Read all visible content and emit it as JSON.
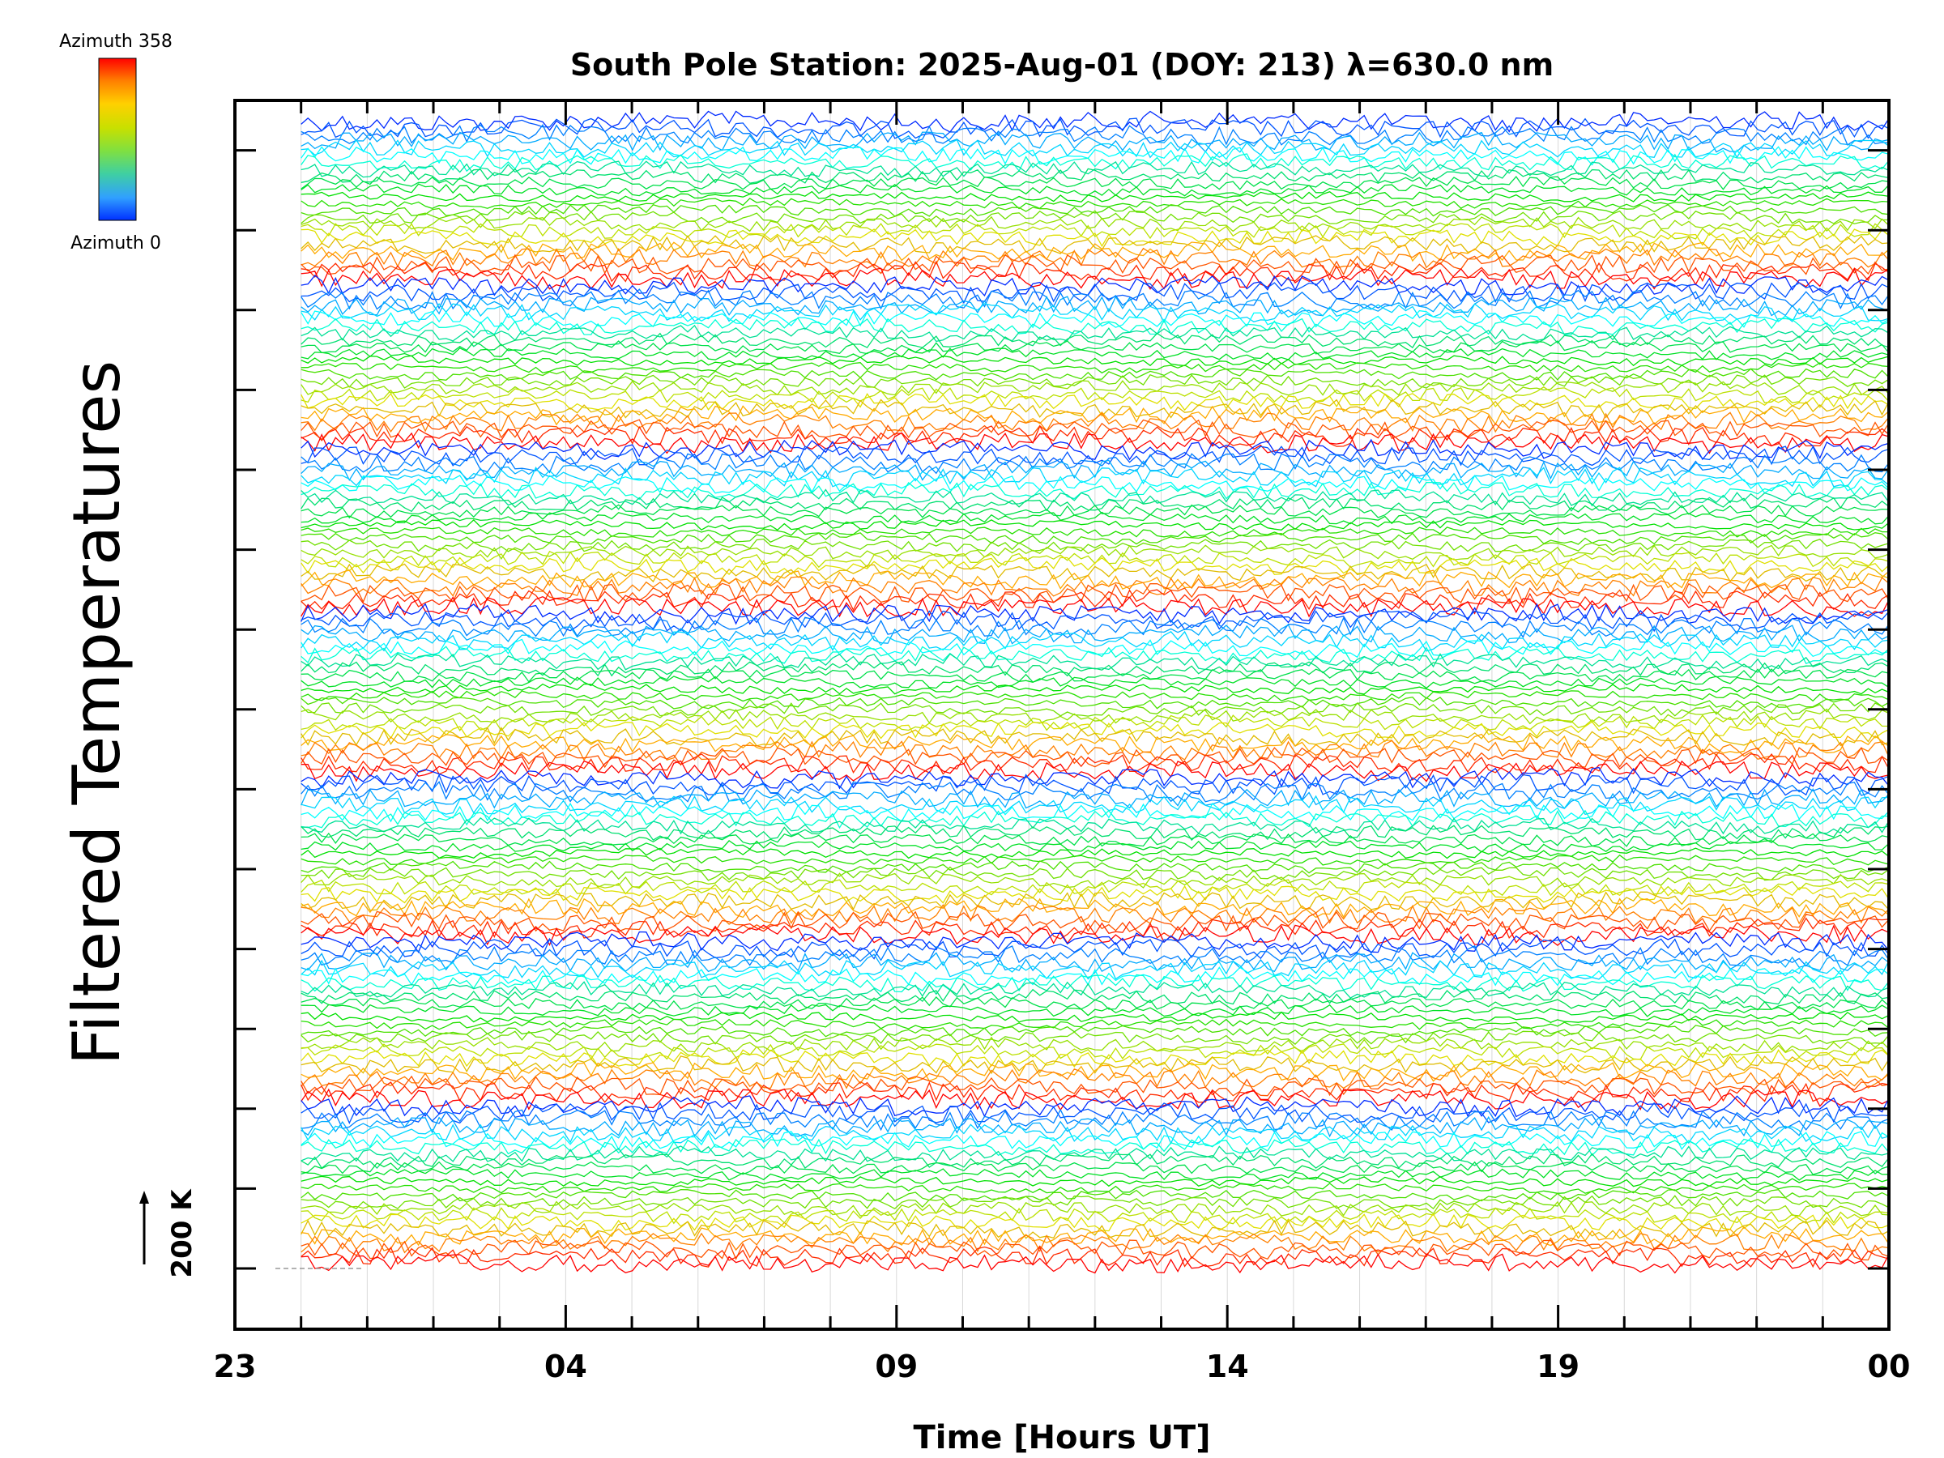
{
  "chart_data": {
    "type": "line",
    "title": "South Pole Station: 2025-Aug-01 (DOY: 213) λ=630.0 nm",
    "xlabel": "Time [Hours UT]",
    "ylabel": "Filtered Temperatures",
    "scale_label": "200 K",
    "x_ticks": [
      "23",
      "04",
      "09",
      "14",
      "19",
      "00"
    ],
    "x_range_hours": [
      -1,
      24
    ],
    "data_start_hour": 0,
    "data_end_hour": 24,
    "grid": true,
    "colorbar": {
      "top_label": "Azimuth 358",
      "bottom_label": "Azimuth 0",
      "colors": [
        "#ff0000",
        "#ff8000",
        "#ffd000",
        "#c8e000",
        "#80e040",
        "#40d0a0",
        "#30a0ff",
        "#0030ff"
      ]
    },
    "bands": 7,
    "traces_per_band": 24,
    "y_major_ticks": 15
  }
}
